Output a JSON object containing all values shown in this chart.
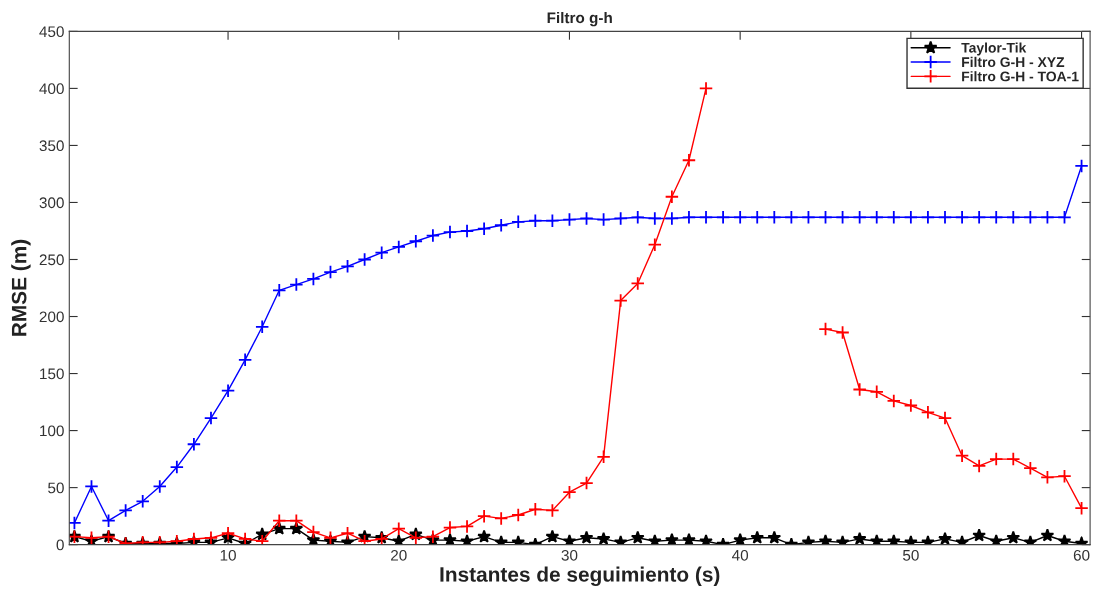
{
  "chart_data": {
    "type": "line",
    "title": "Filtro g-h",
    "xlabel": "Instantes de seguimiento (s)",
    "ylabel": "RMSE (m)",
    "x": [
      1,
      2,
      3,
      4,
      5,
      6,
      7,
      8,
      9,
      10,
      11,
      12,
      13,
      14,
      15,
      16,
      17,
      18,
      19,
      20,
      21,
      22,
      23,
      24,
      25,
      26,
      27,
      28,
      29,
      30,
      31,
      32,
      33,
      34,
      35,
      36,
      37,
      38,
      39,
      40,
      41,
      42,
      43,
      44,
      45,
      46,
      47,
      48,
      49,
      50,
      51,
      52,
      53,
      54,
      55,
      56,
      57,
      58,
      59,
      60
    ],
    "series": [
      {
        "name": "Taylor-Tik",
        "color": "#000000",
        "marker": "star",
        "values": [
          7,
          3,
          7,
          1,
          1,
          1,
          1,
          2,
          2,
          6,
          1,
          9,
          14,
          14,
          4,
          3,
          2,
          7,
          6,
          3,
          9,
          4,
          4,
          3,
          7,
          2,
          2,
          0,
          7,
          3,
          6,
          5,
          2,
          6,
          3,
          4,
          4,
          3,
          0,
          4,
          6,
          6,
          0,
          2,
          3,
          2,
          5,
          3,
          3,
          2,
          2,
          5,
          2,
          8,
          3,
          6,
          2,
          8,
          3,
          1
        ]
      },
      {
        "name": "Filtro G-H - XYZ",
        "color": "#0000ff",
        "marker": "cross",
        "values": [
          19,
          51,
          21,
          30,
          38,
          51,
          68,
          88,
          111,
          135,
          162,
          191,
          223,
          228,
          233,
          239,
          244,
          250,
          256,
          261,
          266,
          271,
          274,
          275,
          277,
          280,
          283,
          284,
          284,
          285,
          286,
          285,
          286,
          287,
          286,
          286,
          287,
          287,
          287,
          287,
          287,
          287,
          287,
          287,
          287,
          287,
          287,
          287,
          287,
          287,
          287,
          287,
          287,
          287,
          287,
          287,
          287,
          287,
          287,
          332
        ]
      },
      {
        "name": "Filtro G-H - TOA-1",
        "color": "#ff0000",
        "marker": "cross",
        "values": [
          7,
          6,
          7,
          1,
          2,
          2,
          3,
          5,
          6,
          10,
          5,
          3,
          21,
          21,
          11,
          6,
          10,
          3,
          5,
          14,
          6,
          7,
          15,
          16,
          25,
          23,
          26,
          31,
          30,
          46,
          54,
          77,
          214,
          229,
          263,
          305,
          337,
          400,
          null,
          null,
          null,
          null,
          null,
          null,
          189,
          186,
          136,
          134,
          126,
          122,
          116,
          111,
          78,
          69,
          75,
          75,
          67,
          59,
          60,
          32
        ]
      }
    ],
    "xlim": [
      0.7,
      60.5
    ],
    "xticks": [
      10,
      20,
      30,
      40,
      50,
      60
    ],
    "ylim": [
      0,
      450
    ],
    "yticks": [
      0,
      50,
      100,
      150,
      200,
      250,
      300,
      350,
      400,
      450
    ],
    "grid": false,
    "legend": "top right",
    "line_style": "solid"
  }
}
